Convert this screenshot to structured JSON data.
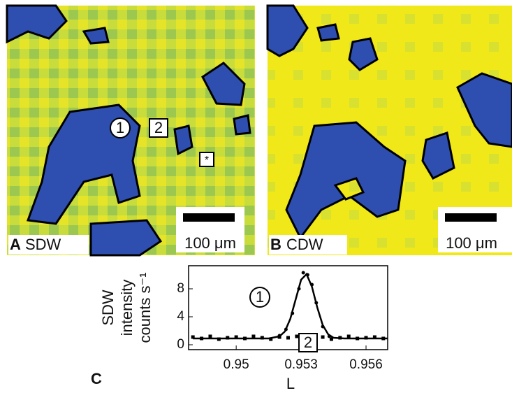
{
  "panels": [
    {
      "label": "A",
      "name": "SDW",
      "scale": "100 μm",
      "markers": [
        "1",
        "2",
        "*"
      ]
    },
    {
      "label": "B",
      "name": "CDW",
      "scale": "100 μm"
    }
  ],
  "chart_data": {
    "type": "line",
    "label": "C",
    "ylabel": [
      "SDW",
      "intensity",
      "counts s⁻¹"
    ],
    "xlabel": "L",
    "annotations": [
      "1",
      "2"
    ],
    "xlim": [
      0.9478,
      0.957
    ],
    "xticks": [
      0.95,
      0.953,
      0.956
    ],
    "ylim": [
      -0.7,
      11.3
    ],
    "yticks": [
      0,
      4,
      8
    ],
    "series": [
      {
        "marker": "line",
        "color": "#000000",
        "x": [
          0.948,
          0.951,
          0.9515,
          0.952,
          0.95225,
          0.9525,
          0.95275,
          0.953,
          0.95325,
          0.9535,
          0.95375,
          0.954,
          0.95425,
          0.9545,
          0.955,
          0.957
        ],
        "values": [
          0.9,
          0.9,
          0.9,
          1.2,
          1.9,
          3.7,
          6.5,
          9.3,
          10.1,
          8.3,
          5.3,
          2.8,
          1.5,
          1.0,
          0.9,
          0.9
        ]
      },
      {
        "marker": "circle",
        "color": "#000000",
        "x": [
          0.952,
          0.9523,
          0.9526,
          0.9529,
          0.9531,
          0.9533,
          0.9535,
          0.9537,
          0.954,
          0.9543
        ],
        "values": [
          1.3,
          2.2,
          4.5,
          8.0,
          10.3,
          10.0,
          8.6,
          6.0,
          2.6,
          1.2
        ]
      },
      {
        "marker": "square",
        "color": "#000000",
        "x": [
          0.948,
          0.9484,
          0.9488,
          0.9492,
          0.9496,
          0.95,
          0.9504,
          0.9508,
          0.9512,
          0.9516,
          0.952,
          0.9524,
          0.9528,
          0.9532,
          0.9536,
          0.954,
          0.9544,
          0.9548,
          0.9552,
          0.9556,
          0.956,
          0.9564,
          0.9568
        ],
        "values": [
          1.1,
          0.9,
          1.2,
          0.8,
          1.0,
          1.1,
          0.9,
          1.2,
          1.0,
          0.8,
          1.1,
          1.0,
          1.2,
          0.9,
          1.0,
          1.1,
          0.8,
          1.0,
          1.2,
          0.9,
          1.0,
          1.1,
          0.9
        ]
      }
    ]
  }
}
